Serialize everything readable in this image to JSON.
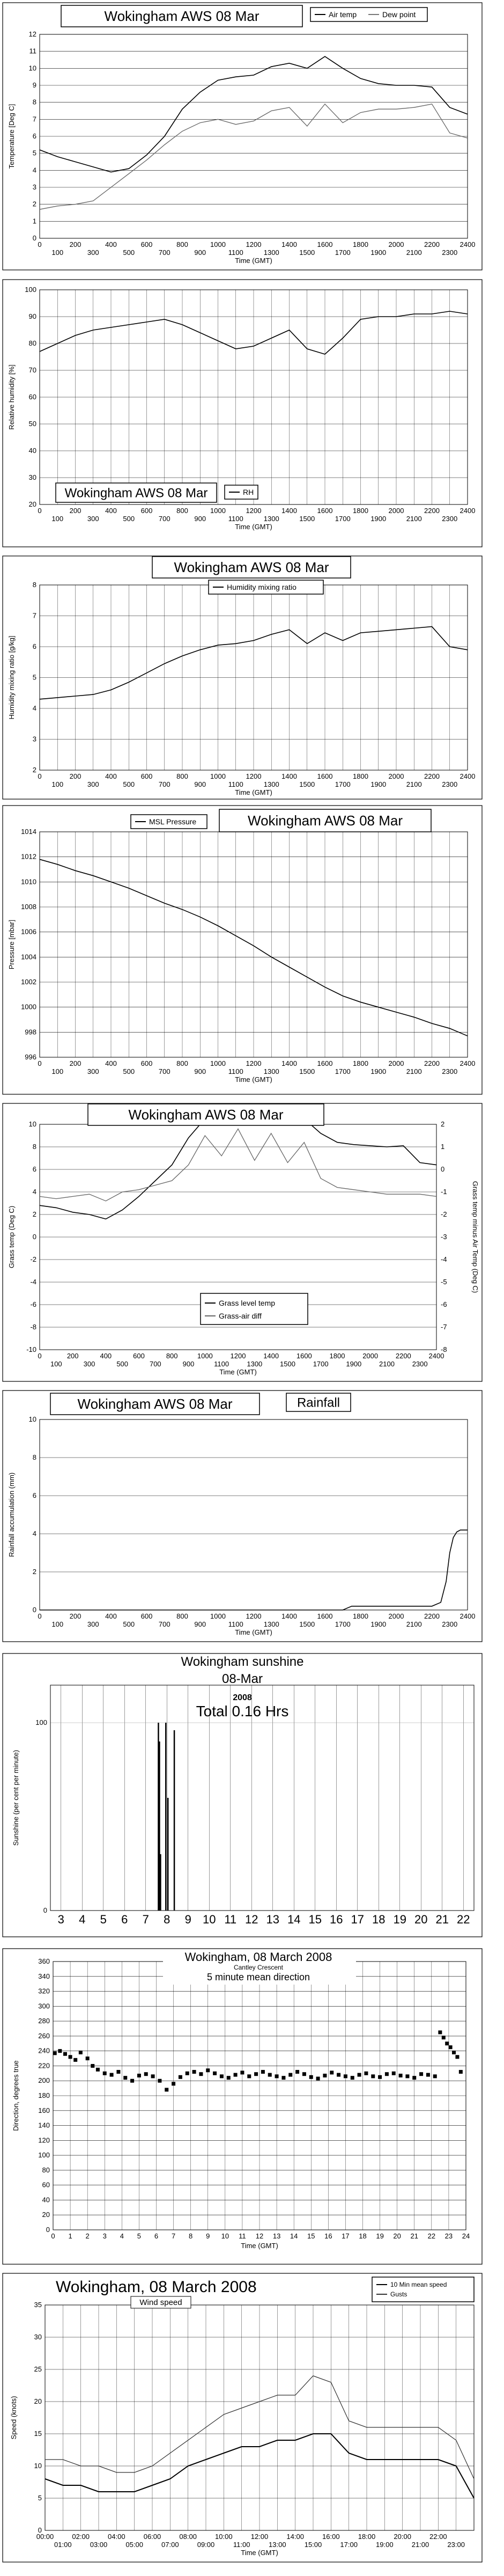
{
  "chart_data": [
    {
      "type": "line",
      "title": "Wokingham AWS 08 Mar",
      "xlabel": "Time (GMT)",
      "ylabel": "Temperature [Deg C]",
      "ylim": [
        0,
        12
      ],
      "xlim": [
        0,
        2400
      ],
      "y_ticks": [
        "0",
        "1",
        "2",
        "3",
        "4",
        "5",
        "6",
        "7",
        "8",
        "9",
        "10",
        "11",
        "12"
      ],
      "x_ticks_top": [
        "0",
        "200",
        "400",
        "600",
        "800",
        "1000",
        "1200",
        "1400",
        "1600",
        "1800",
        "2000",
        "2200",
        "2400"
      ],
      "x_ticks_bottom": [
        "100",
        "300",
        "500",
        "700",
        "900",
        "1100",
        "1300",
        "1500",
        "1700",
        "1900",
        "2100",
        "2300"
      ],
      "series": [
        {
          "name": "Air temp",
          "x": [
            0,
            100,
            200,
            300,
            400,
            500,
            600,
            700,
            800,
            900,
            1000,
            1100,
            1200,
            1300,
            1400,
            1500,
            1600,
            1700,
            1800,
            1900,
            2000,
            2100,
            2200,
            2300,
            2400
          ],
          "values": [
            5.2,
            4.8,
            4.5,
            4.2,
            3.9,
            4.1,
            4.9,
            6.0,
            7.6,
            8.6,
            9.3,
            9.5,
            9.6,
            10.1,
            10.3,
            10.0,
            10.7,
            10.0,
            9.4,
            9.1,
            9.0,
            9.0,
            8.9,
            7.7,
            7.3
          ]
        },
        {
          "name": "Dew point",
          "x": [
            0,
            100,
            200,
            300,
            400,
            500,
            600,
            700,
            800,
            900,
            1000,
            1100,
            1200,
            1300,
            1400,
            1500,
            1600,
            1700,
            1800,
            1900,
            2000,
            2100,
            2200,
            2300,
            2400
          ],
          "values": [
            1.7,
            1.9,
            2.0,
            2.2,
            3.0,
            3.8,
            4.6,
            5.5,
            6.3,
            6.8,
            7.0,
            6.7,
            6.9,
            7.5,
            7.7,
            6.6,
            7.9,
            6.8,
            7.4,
            7.6,
            7.6,
            7.7,
            7.9,
            6.2,
            5.9
          ]
        }
      ],
      "grid": true,
      "legend": "top-right"
    },
    {
      "type": "line",
      "title": "Wokingham AWS 08 Mar",
      "xlabel": "Time (GMT)",
      "ylabel": "Relative humidity [%]",
      "ylim": [
        20,
        100
      ],
      "xlim": [
        0,
        2400
      ],
      "y_ticks": [
        "20",
        "30",
        "40",
        "50",
        "60",
        "70",
        "80",
        "90",
        "100"
      ],
      "x_ticks_top": [
        "0",
        "200",
        "400",
        "600",
        "800",
        "1000",
        "1200",
        "1400",
        "1600",
        "1800",
        "2000",
        "2200",
        "2400"
      ],
      "x_ticks_bottom": [
        "100",
        "300",
        "500",
        "700",
        "900",
        "1100",
        "1300",
        "1500",
        "1700",
        "1900",
        "2100",
        "2300"
      ],
      "series": [
        {
          "name": "RH",
          "x": [
            0,
            100,
            200,
            300,
            400,
            500,
            600,
            700,
            800,
            900,
            1000,
            1100,
            1200,
            1300,
            1400,
            1500,
            1600,
            1700,
            1800,
            1900,
            2000,
            2100,
            2200,
            2300,
            2400
          ],
          "values": [
            77,
            80,
            83,
            85,
            86,
            87,
            88,
            89,
            87,
            84,
            81,
            78,
            79,
            82,
            85,
            78,
            76,
            82,
            89,
            90,
            90,
            91,
            91,
            92,
            91
          ]
        }
      ],
      "grid": true,
      "legend": "bottom-center"
    },
    {
      "type": "line",
      "title": "Wokingham AWS 08 Mar",
      "xlabel": "Time (GMT)",
      "ylabel": "Humidity mixing ratio [g/kg]",
      "ylim": [
        2,
        8
      ],
      "xlim": [
        0,
        2400
      ],
      "y_ticks": [
        "2",
        "3",
        "4",
        "5",
        "6",
        "7",
        "8"
      ],
      "x_ticks_top": [
        "0",
        "200",
        "400",
        "600",
        "800",
        "1000",
        "1200",
        "1400",
        "1600",
        "1800",
        "2000",
        "2200",
        "2400"
      ],
      "x_ticks_bottom": [
        "100",
        "300",
        "500",
        "700",
        "900",
        "1100",
        "1300",
        "1500",
        "1700",
        "1900",
        "2100",
        "2300"
      ],
      "series": [
        {
          "name": "Humidity mixing ratio",
          "x": [
            0,
            100,
            200,
            300,
            400,
            500,
            600,
            700,
            800,
            900,
            1000,
            1100,
            1200,
            1300,
            1400,
            1500,
            1600,
            1700,
            1800,
            1900,
            2000,
            2100,
            2200,
            2300,
            2400
          ],
          "values": [
            4.3,
            4.35,
            4.4,
            4.45,
            4.6,
            4.85,
            5.15,
            5.45,
            5.7,
            5.9,
            6.05,
            6.1,
            6.2,
            6.4,
            6.55,
            6.1,
            6.45,
            6.2,
            6.45,
            6.5,
            6.55,
            6.6,
            6.65,
            6.0,
            5.9
          ]
        }
      ],
      "grid": true,
      "legend": "top-center"
    },
    {
      "type": "line",
      "title": "Wokingham AWS 08 Mar",
      "xlabel": "Time (GMT)",
      "ylabel": "Pressure [mbar]",
      "ylim": [
        996,
        1014
      ],
      "xlim": [
        0,
        2400
      ],
      "y_ticks": [
        "996",
        "998",
        "1000",
        "1002",
        "1004",
        "1006",
        "1008",
        "1010",
        "1012",
        "1014"
      ],
      "x_ticks_top": [
        "0",
        "200",
        "400",
        "600",
        "800",
        "1000",
        "1200",
        "1400",
        "1600",
        "1800",
        "2000",
        "2200",
        "2400"
      ],
      "x_ticks_bottom": [
        "100",
        "300",
        "500",
        "700",
        "900",
        "1100",
        "1300",
        "1500",
        "1700",
        "1900",
        "2100",
        "2300"
      ],
      "series": [
        {
          "name": "MSL Pressure",
          "x": [
            0,
            100,
            200,
            300,
            400,
            500,
            600,
            700,
            800,
            900,
            1000,
            1100,
            1200,
            1300,
            1400,
            1500,
            1600,
            1700,
            1800,
            1900,
            2000,
            2100,
            2200,
            2300,
            2400
          ],
          "values": [
            1011.8,
            1011.4,
            1010.9,
            1010.5,
            1010.0,
            1009.5,
            1008.9,
            1008.3,
            1007.8,
            1007.2,
            1006.5,
            1005.7,
            1004.9,
            1004.0,
            1003.2,
            1002.4,
            1001.6,
            1000.9,
            1000.4,
            1000.0,
            999.6,
            999.2,
            998.7,
            998.3,
            997.7
          ]
        }
      ],
      "grid": true,
      "legend": "top-left"
    },
    {
      "type": "line",
      "title": "Wokingham AWS 08 Mar",
      "xlabel": "Time (GMT)",
      "ylabel": "Grass temp (Deg C)",
      "y2label": "Grass temp minus Air Temp (Deg C)",
      "ylim": [
        -10,
        10
      ],
      "y2lim": [
        -8,
        2
      ],
      "xlim": [
        0,
        2400
      ],
      "y_ticks": [
        "-10",
        "-8",
        "-6",
        "-4",
        "-2",
        "0",
        "2",
        "4",
        "6",
        "8",
        "10"
      ],
      "y2_ticks": [
        "-8",
        "-7",
        "-6",
        "-5",
        "-4",
        "-3",
        "-2",
        "-1",
        "0",
        "1",
        "2"
      ],
      "x_ticks_top": [
        "0",
        "200",
        "400",
        "600",
        "800",
        "1000",
        "1200",
        "1400",
        "1600",
        "1800",
        "2000",
        "2200",
        "2400"
      ],
      "x_ticks_bottom": [
        "100",
        "300",
        "500",
        "700",
        "900",
        "1100",
        "1300",
        "1500",
        "1700",
        "1900",
        "2100",
        "2300"
      ],
      "series": [
        {
          "name": "Grass level temp",
          "axis": "left",
          "x": [
            0,
            100,
            200,
            300,
            400,
            500,
            600,
            700,
            800,
            900,
            1000,
            1100,
            1200,
            1300,
            1400,
            1500,
            1600,
            1700,
            1800,
            1900,
            2000,
            2100,
            2200,
            2300,
            2400
          ],
          "values": [
            2.8,
            2.6,
            2.2,
            2.0,
            1.6,
            2.4,
            3.6,
            5.0,
            6.4,
            8.8,
            10.5,
            10.5,
            10.5,
            10.5,
            10.5,
            10.5,
            10.5,
            9.2,
            8.4,
            8.2,
            8.1,
            8.0,
            8.1,
            6.6,
            6.4
          ]
        },
        {
          "name": "Grass-air diff",
          "axis": "right",
          "x": [
            0,
            100,
            200,
            300,
            400,
            500,
            600,
            700,
            800,
            900,
            1000,
            1100,
            1200,
            1300,
            1400,
            1500,
            1600,
            1700,
            1800,
            1900,
            2000,
            2100,
            2200,
            2300,
            2400
          ],
          "values": [
            -1.2,
            -1.3,
            -1.2,
            -1.1,
            -1.4,
            -1.0,
            -0.9,
            -0.7,
            -0.5,
            0.2,
            1.5,
            0.6,
            1.8,
            0.4,
            1.6,
            0.3,
            1.2,
            -0.4,
            -0.8,
            -0.9,
            -1.0,
            -1.1,
            -1.1,
            -1.1,
            -1.2
          ]
        }
      ],
      "grid": true,
      "legend": "bottom-center"
    },
    {
      "type": "line",
      "title": "Wokingham AWS 08 Mar",
      "label": "Rainfall",
      "xlabel": "Time (GMT)",
      "ylabel": "Rainfall accumulation (mm)",
      "ylim": [
        0,
        10
      ],
      "xlim": [
        0,
        2400
      ],
      "y_ticks": [
        "0",
        "2",
        "4",
        "6",
        "8",
        "10"
      ],
      "x_ticks_top": [
        "0",
        "200",
        "400",
        "600",
        "800",
        "1000",
        "1200",
        "1400",
        "1600",
        "1800",
        "2000",
        "2200",
        "2400"
      ],
      "x_ticks_bottom": [
        "100",
        "300",
        "500",
        "700",
        "900",
        "1100",
        "1300",
        "1500",
        "1700",
        "1900",
        "2100",
        "2300"
      ],
      "series": [
        {
          "name": "Rainfall",
          "x": [
            0,
            1700,
            1750,
            2200,
            2250,
            2280,
            2300,
            2320,
            2340,
            2360,
            2400
          ],
          "values": [
            0,
            0,
            0.2,
            0.2,
            0.4,
            1.5,
            3.0,
            3.8,
            4.1,
            4.2,
            4.2
          ]
        }
      ],
      "grid": true
    },
    {
      "type": "bar",
      "title": "Wokingham sunshine",
      "subtitle": "08-Mar",
      "year": "2008",
      "total": "Total 0.16 Hrs",
      "xlabel": "",
      "ylabel": "Sunshine (per cent per minute)",
      "ylim": [
        0,
        120
      ],
      "xlim": [
        2.5,
        22.5
      ],
      "y_ticks": [
        "0",
        "100"
      ],
      "x_ticks": [
        "3",
        "4",
        "5",
        "6",
        "7",
        "8",
        "9",
        "10",
        "11",
        "12",
        "13",
        "14",
        "15",
        "16",
        "17",
        "18",
        "19",
        "20",
        "21",
        "22"
      ],
      "x": [
        7.6,
        7.65,
        7.7,
        7.95,
        8.05,
        8.35
      ],
      "values": [
        100,
        90,
        30,
        100,
        60,
        96
      ],
      "grid": true
    },
    {
      "type": "scatter",
      "title": "Wokingham,  08 March 2008",
      "subtitle": "Cantley Crescent",
      "label": "5 minute mean direction",
      "xlabel": "Time (GMT)",
      "ylabel": "Direction, degrees true",
      "ylim": [
        0,
        360
      ],
      "xlim": [
        0,
        24
      ],
      "y_ticks": [
        "0",
        "20",
        "40",
        "60",
        "80",
        "100",
        "120",
        "140",
        "160",
        "180",
        "200",
        "220",
        "240",
        "260",
        "280",
        "300",
        "320",
        "340",
        "360"
      ],
      "x_ticks": [
        "0",
        "1",
        "2",
        "3",
        "4",
        "5",
        "6",
        "7",
        "8",
        "9",
        "10",
        "11",
        "12",
        "13",
        "14",
        "15",
        "16",
        "17",
        "18",
        "19",
        "20",
        "21",
        "22",
        "23",
        "24"
      ],
      "x": [
        0.1,
        0.4,
        0.7,
        1.0,
        1.3,
        1.6,
        2.0,
        2.3,
        2.6,
        3.0,
        3.4,
        3.8,
        4.2,
        4.6,
        5.0,
        5.4,
        5.8,
        6.2,
        6.6,
        7.0,
        7.4,
        7.8,
        8.2,
        8.6,
        9.0,
        9.4,
        9.8,
        10.2,
        10.6,
        11.0,
        11.4,
        11.8,
        12.2,
        12.6,
        13.0,
        13.4,
        13.8,
        14.2,
        14.6,
        15.0,
        15.4,
        15.8,
        16.2,
        16.6,
        17.0,
        17.4,
        17.8,
        18.2,
        18.6,
        19.0,
        19.4,
        19.8,
        20.2,
        20.6,
        21.0,
        21.4,
        21.8,
        22.2,
        22.5,
        22.7,
        22.9,
        23.1,
        23.3,
        23.5,
        23.7
      ],
      "values": [
        237,
        240,
        236,
        232,
        228,
        238,
        230,
        220,
        215,
        210,
        208,
        212,
        204,
        200,
        207,
        209,
        206,
        200,
        188,
        196,
        205,
        210,
        212,
        209,
        214,
        210,
        206,
        204,
        208,
        211,
        206,
        209,
        212,
        208,
        206,
        204,
        208,
        212,
        209,
        205,
        203,
        207,
        211,
        208,
        206,
        204,
        208,
        210,
        206,
        205,
        209,
        210,
        207,
        206,
        204,
        209,
        208,
        206,
        265,
        258,
        250,
        245,
        238,
        232,
        212
      ],
      "grid": true
    },
    {
      "type": "line",
      "title": "Wokingham,  08 March 2008",
      "label": "Wind speed",
      "xlabel": "Time (GMT)",
      "ylabel": "Speed (knots)",
      "ylim": [
        0,
        35
      ],
      "xlim": [
        0,
        24
      ],
      "y_ticks": [
        "0",
        "5",
        "10",
        "15",
        "20",
        "25",
        "30",
        "35"
      ],
      "x_ticks_top": [
        "00:00",
        "02:00",
        "04:00",
        "06:00",
        "08:00",
        "10:00",
        "12:00",
        "14:00",
        "16:00",
        "18:00",
        "20:00",
        "22:00"
      ],
      "x_ticks_bottom": [
        "01:00",
        "03:00",
        "05:00",
        "07:00",
        "09:00",
        "11:00",
        "13:00",
        "15:00",
        "17:00",
        "19:00",
        "21:00",
        "23:00"
      ],
      "series": [
        {
          "name": "10 Min mean speed",
          "x": [
            0,
            1,
            2,
            3,
            4,
            5,
            6,
            7,
            8,
            9,
            10,
            11,
            12,
            13,
            14,
            15,
            16,
            17,
            18,
            19,
            20,
            21,
            22,
            23,
            24
          ],
          "values": [
            8,
            7,
            7,
            6,
            6,
            6,
            7,
            8,
            10,
            11,
            12,
            13,
            13,
            14,
            14,
            15,
            15,
            12,
            11,
            11,
            11,
            11,
            11,
            10,
            5
          ]
        },
        {
          "name": "Gusts",
          "x": [
            0,
            1,
            2,
            3,
            4,
            5,
            6,
            7,
            8,
            9,
            10,
            11,
            12,
            13,
            14,
            15,
            16,
            17,
            18,
            19,
            20,
            21,
            22,
            23,
            24
          ],
          "values": [
            11,
            11,
            10,
            10,
            9,
            9,
            10,
            12,
            14,
            16,
            18,
            19,
            20,
            21,
            21,
            24,
            23,
            17,
            16,
            16,
            16,
            16,
            16,
            14,
            8
          ]
        }
      ],
      "grid": true,
      "legend": "top-right"
    }
  ]
}
